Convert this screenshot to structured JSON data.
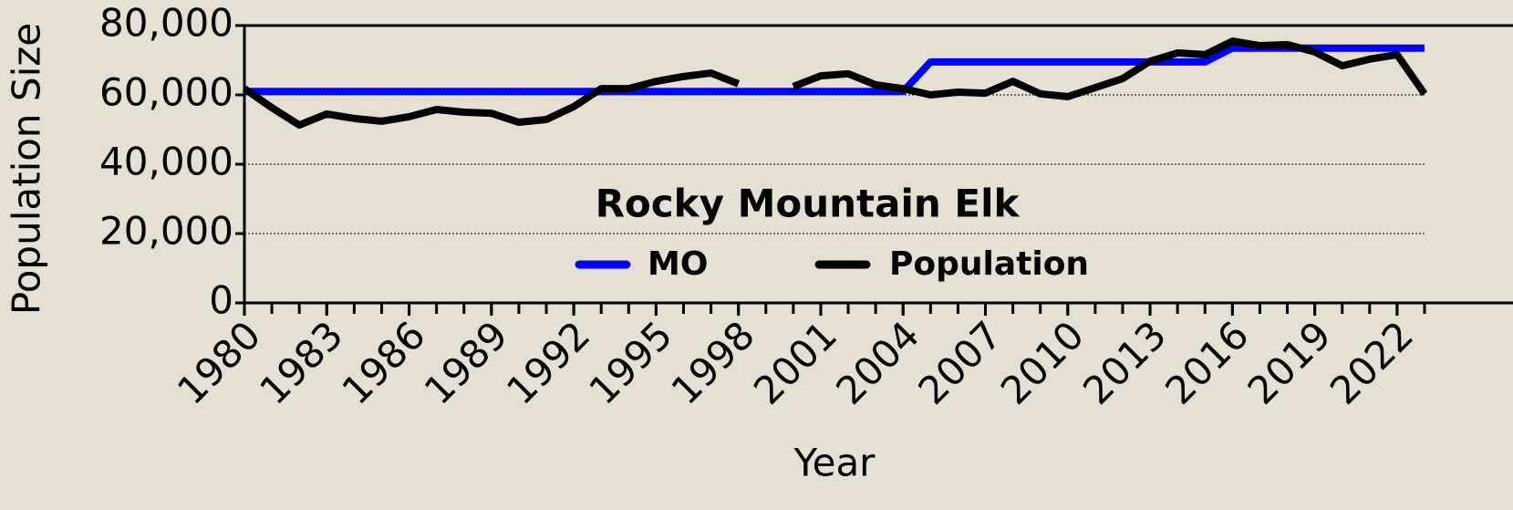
{
  "chart_data": {
    "type": "line",
    "title": "Rocky Mountain Elk",
    "xlabel": "Year",
    "ylabel": "Population Size",
    "x": [
      1980,
      1981,
      1982,
      1983,
      1984,
      1985,
      1986,
      1987,
      1988,
      1989,
      1990,
      1991,
      1992,
      1993,
      1994,
      1995,
      1996,
      1997,
      1998,
      1999,
      2000,
      2001,
      2002,
      2003,
      2004,
      2005,
      2006,
      2007,
      2008,
      2009,
      2010,
      2011,
      2012,
      2013,
      2014,
      2015,
      2016,
      2017,
      2018,
      2019,
      2020,
      2021,
      2022,
      2023
    ],
    "series": [
      {
        "name": "MO",
        "color": "#0000ff",
        "values": [
          61000,
          61000,
          61000,
          61000,
          61000,
          61000,
          61000,
          61000,
          61000,
          61000,
          61000,
          61000,
          61000,
          61000,
          61000,
          61000,
          61000,
          61000,
          61000,
          61000,
          61000,
          61000,
          61000,
          61000,
          61000,
          69500,
          69500,
          69500,
          69500,
          69500,
          69500,
          69500,
          69500,
          69500,
          69500,
          69500,
          73500,
          73500,
          73500,
          73500,
          73500,
          73500,
          73500,
          73500
        ]
      },
      {
        "name": "Population",
        "color": "#000000",
        "values": [
          61800,
          56300,
          51300,
          54500,
          53200,
          52400,
          53700,
          55800,
          55000,
          54700,
          52100,
          52900,
          56600,
          61800,
          61800,
          63900,
          65300,
          66300,
          63200,
          null,
          62400,
          65500,
          66100,
          62900,
          61800,
          60000,
          60800,
          60500,
          63900,
          60300,
          59500,
          62100,
          64700,
          69700,
          72100,
          71600,
          75500,
          74200,
          74500,
          72400,
          68400,
          70300,
          71600,
          60300
        ]
      }
    ],
    "xlim": [
      1980,
      2023
    ],
    "xticks": [
      1980,
      1983,
      1986,
      1989,
      1992,
      1995,
      1998,
      2001,
      2004,
      2007,
      2010,
      2013,
      2016,
      2019,
      2022
    ],
    "ylim": [
      0,
      80000
    ],
    "yticks": [
      {
        "value": 0,
        "label": "0"
      },
      {
        "value": 20000,
        "label": "20,000"
      },
      {
        "value": 40000,
        "label": "40,000"
      },
      {
        "value": 60000,
        "label": "60,000"
      },
      {
        "value": 80000,
        "label": "80,000"
      }
    ],
    "grid": true
  }
}
